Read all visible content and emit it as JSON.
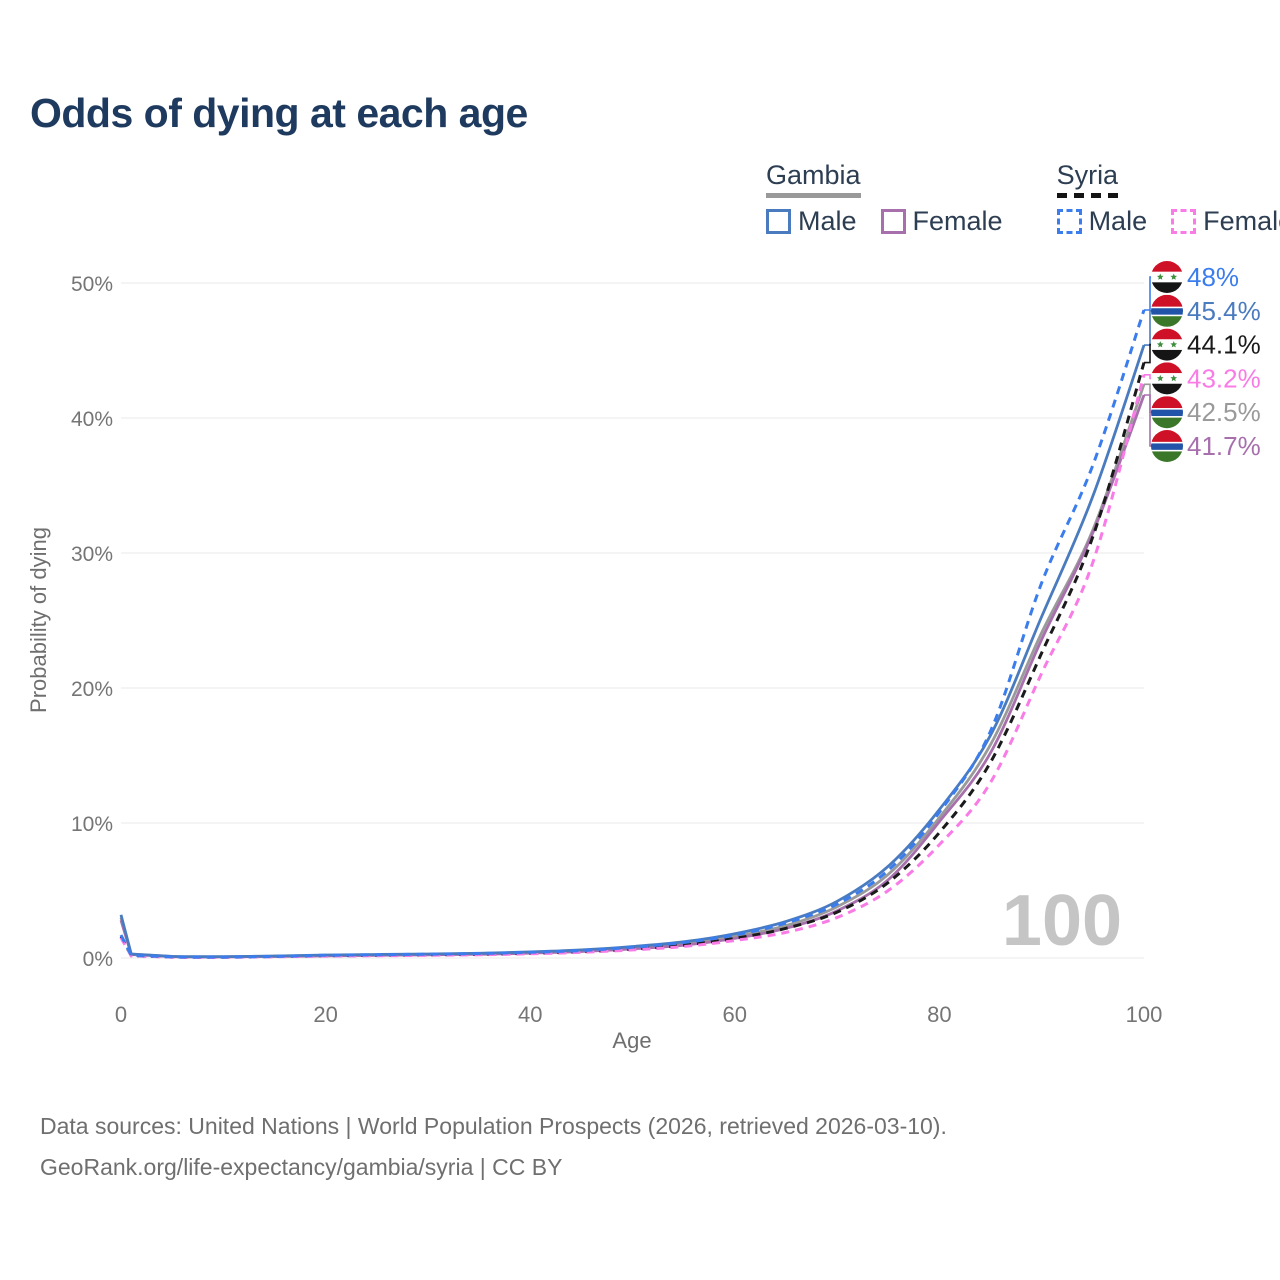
{
  "title": "Odds of dying at each age",
  "legend": {
    "groups": [
      {
        "label": "Gambia",
        "underline_style": "solid",
        "underline_color": "#999999",
        "items": [
          {
            "label": "Male",
            "color": "#4a7bbf",
            "dash": false
          },
          {
            "label": "Female",
            "color": "#a770ad",
            "dash": false
          }
        ]
      },
      {
        "label": "Syria",
        "underline_style": "dashed",
        "underline_color": "#141414",
        "items": [
          {
            "label": "Male",
            "color": "#3b7ded",
            "dash": true
          },
          {
            "label": "Female",
            "color": "#f97be6",
            "dash": true
          }
        ]
      }
    ]
  },
  "chart_data": {
    "type": "line",
    "title": "Odds of dying at each age",
    "xlabel": "Age",
    "ylabel": "Probability of dying",
    "xlim": [
      0,
      100
    ],
    "ylim": [
      0,
      50
    ],
    "x_ticks": [
      0,
      20,
      40,
      60,
      80,
      100
    ],
    "y_ticks": [
      {
        "value": 0,
        "label": "0%"
      },
      {
        "value": 10,
        "label": "10%"
      },
      {
        "value": 20,
        "label": "20%"
      },
      {
        "value": 30,
        "label": "30%"
      },
      {
        "value": 40,
        "label": "40%"
      },
      {
        "value": 50,
        "label": "50%"
      }
    ],
    "grid": "horizontal",
    "legend_position": "top-right",
    "watermark": "100",
    "x": [
      0,
      1,
      5,
      10,
      15,
      20,
      25,
      30,
      35,
      40,
      45,
      50,
      55,
      60,
      65,
      70,
      75,
      80,
      85,
      90,
      95,
      100
    ],
    "series": [
      {
        "name": "Gambia — Both sexes",
        "group": "Gambia",
        "sex": "Both",
        "color": "#9a9a9a",
        "dash": false,
        "end_value": 42.5,
        "values": [
          3.0,
          0.28,
          0.11,
          0.09,
          0.13,
          0.19,
          0.23,
          0.27,
          0.31,
          0.4,
          0.53,
          0.75,
          1.05,
          1.6,
          2.4,
          3.8,
          6.2,
          10.4,
          15.8,
          24.1,
          31.7,
          42.5
        ]
      },
      {
        "name": "Gambia — Female",
        "group": "Gambia",
        "sex": "Female",
        "color": "#a770ad",
        "dash": false,
        "end_value": 41.7,
        "values": [
          2.8,
          0.26,
          0.1,
          0.08,
          0.11,
          0.16,
          0.2,
          0.24,
          0.28,
          0.36,
          0.48,
          0.68,
          0.95,
          1.45,
          2.2,
          3.5,
          5.8,
          10.1,
          15.2,
          23.6,
          31.5,
          41.7
        ]
      },
      {
        "name": "Syria — Both sexes",
        "group": "Syria",
        "sex": "Both",
        "color": "#1a1a1a",
        "dash": true,
        "end_value": 44.1,
        "values": [
          1.6,
          0.18,
          0.07,
          0.06,
          0.1,
          0.16,
          0.19,
          0.23,
          0.27,
          0.35,
          0.46,
          0.65,
          0.95,
          1.45,
          2.2,
          3.4,
          5.6,
          9.3,
          14.5,
          22.6,
          31.2,
          44.1
        ]
      },
      {
        "name": "Syria — Female",
        "group": "Syria",
        "sex": "Female",
        "color": "#f97be6",
        "dash": true,
        "end_value": 43.2,
        "values": [
          1.5,
          0.16,
          0.06,
          0.05,
          0.09,
          0.14,
          0.17,
          0.2,
          0.24,
          0.31,
          0.42,
          0.6,
          0.85,
          1.3,
          1.9,
          3.0,
          5.0,
          8.4,
          13.0,
          21.1,
          29.3,
          43.2
        ]
      },
      {
        "name": "Gambia — Male",
        "group": "Gambia",
        "sex": "Male",
        "color": "#4a7bbf",
        "dash": false,
        "end_value": 45.4,
        "values": [
          3.2,
          0.3,
          0.12,
          0.1,
          0.15,
          0.22,
          0.26,
          0.3,
          0.35,
          0.45,
          0.6,
          0.85,
          1.2,
          1.8,
          2.7,
          4.2,
          6.8,
          11.0,
          16.5,
          25.3,
          34.2,
          45.4
        ]
      },
      {
        "name": "Syria — Male",
        "group": "Syria",
        "sex": "Male",
        "color": "#3b7ded",
        "dash": true,
        "end_value": 48.0,
        "values": [
          1.7,
          0.2,
          0.08,
          0.07,
          0.12,
          0.2,
          0.24,
          0.28,
          0.33,
          0.42,
          0.55,
          0.8,
          1.15,
          1.7,
          2.6,
          4.0,
          6.5,
          10.8,
          16.8,
          27.8,
          36.5,
          48.0
        ]
      }
    ],
    "end_labels": [
      {
        "text": "48%",
        "value": 48.0,
        "color": "#3b7ded",
        "flag": "syria"
      },
      {
        "text": "45.4%",
        "value": 45.4,
        "color": "#4a7bbf",
        "flag": "gambia"
      },
      {
        "text": "44.1%",
        "value": 44.1,
        "color": "#1a1a1a",
        "flag": "syria"
      },
      {
        "text": "43.2%",
        "value": 43.2,
        "color": "#f97be6",
        "flag": "syria"
      },
      {
        "text": "42.5%",
        "value": 42.5,
        "color": "#9a9a9a",
        "flag": "gambia"
      },
      {
        "text": "41.7%",
        "value": 41.7,
        "color": "#a770ad",
        "flag": "gambia"
      }
    ],
    "flags": {
      "syria": {
        "bands": [
          "#CE1126",
          "#ffffff",
          "#151515"
        ],
        "star": "#3d8f3d"
      },
      "gambia": {
        "bands": [
          "#CE1126",
          "#ffffff",
          "#2153a8",
          "#ffffff",
          "#3A7728"
        ]
      }
    },
    "axis_text_color": "#757575",
    "grid_color": "#e9e9e9",
    "watermark_color": "#c5c5c5"
  },
  "footer": {
    "line1": "Data sources: United Nations | World Population Prospects (2026, retrieved 2026-03-10).",
    "line2": "GeoRank.org/life-expectancy/gambia/syria | CC BY"
  }
}
